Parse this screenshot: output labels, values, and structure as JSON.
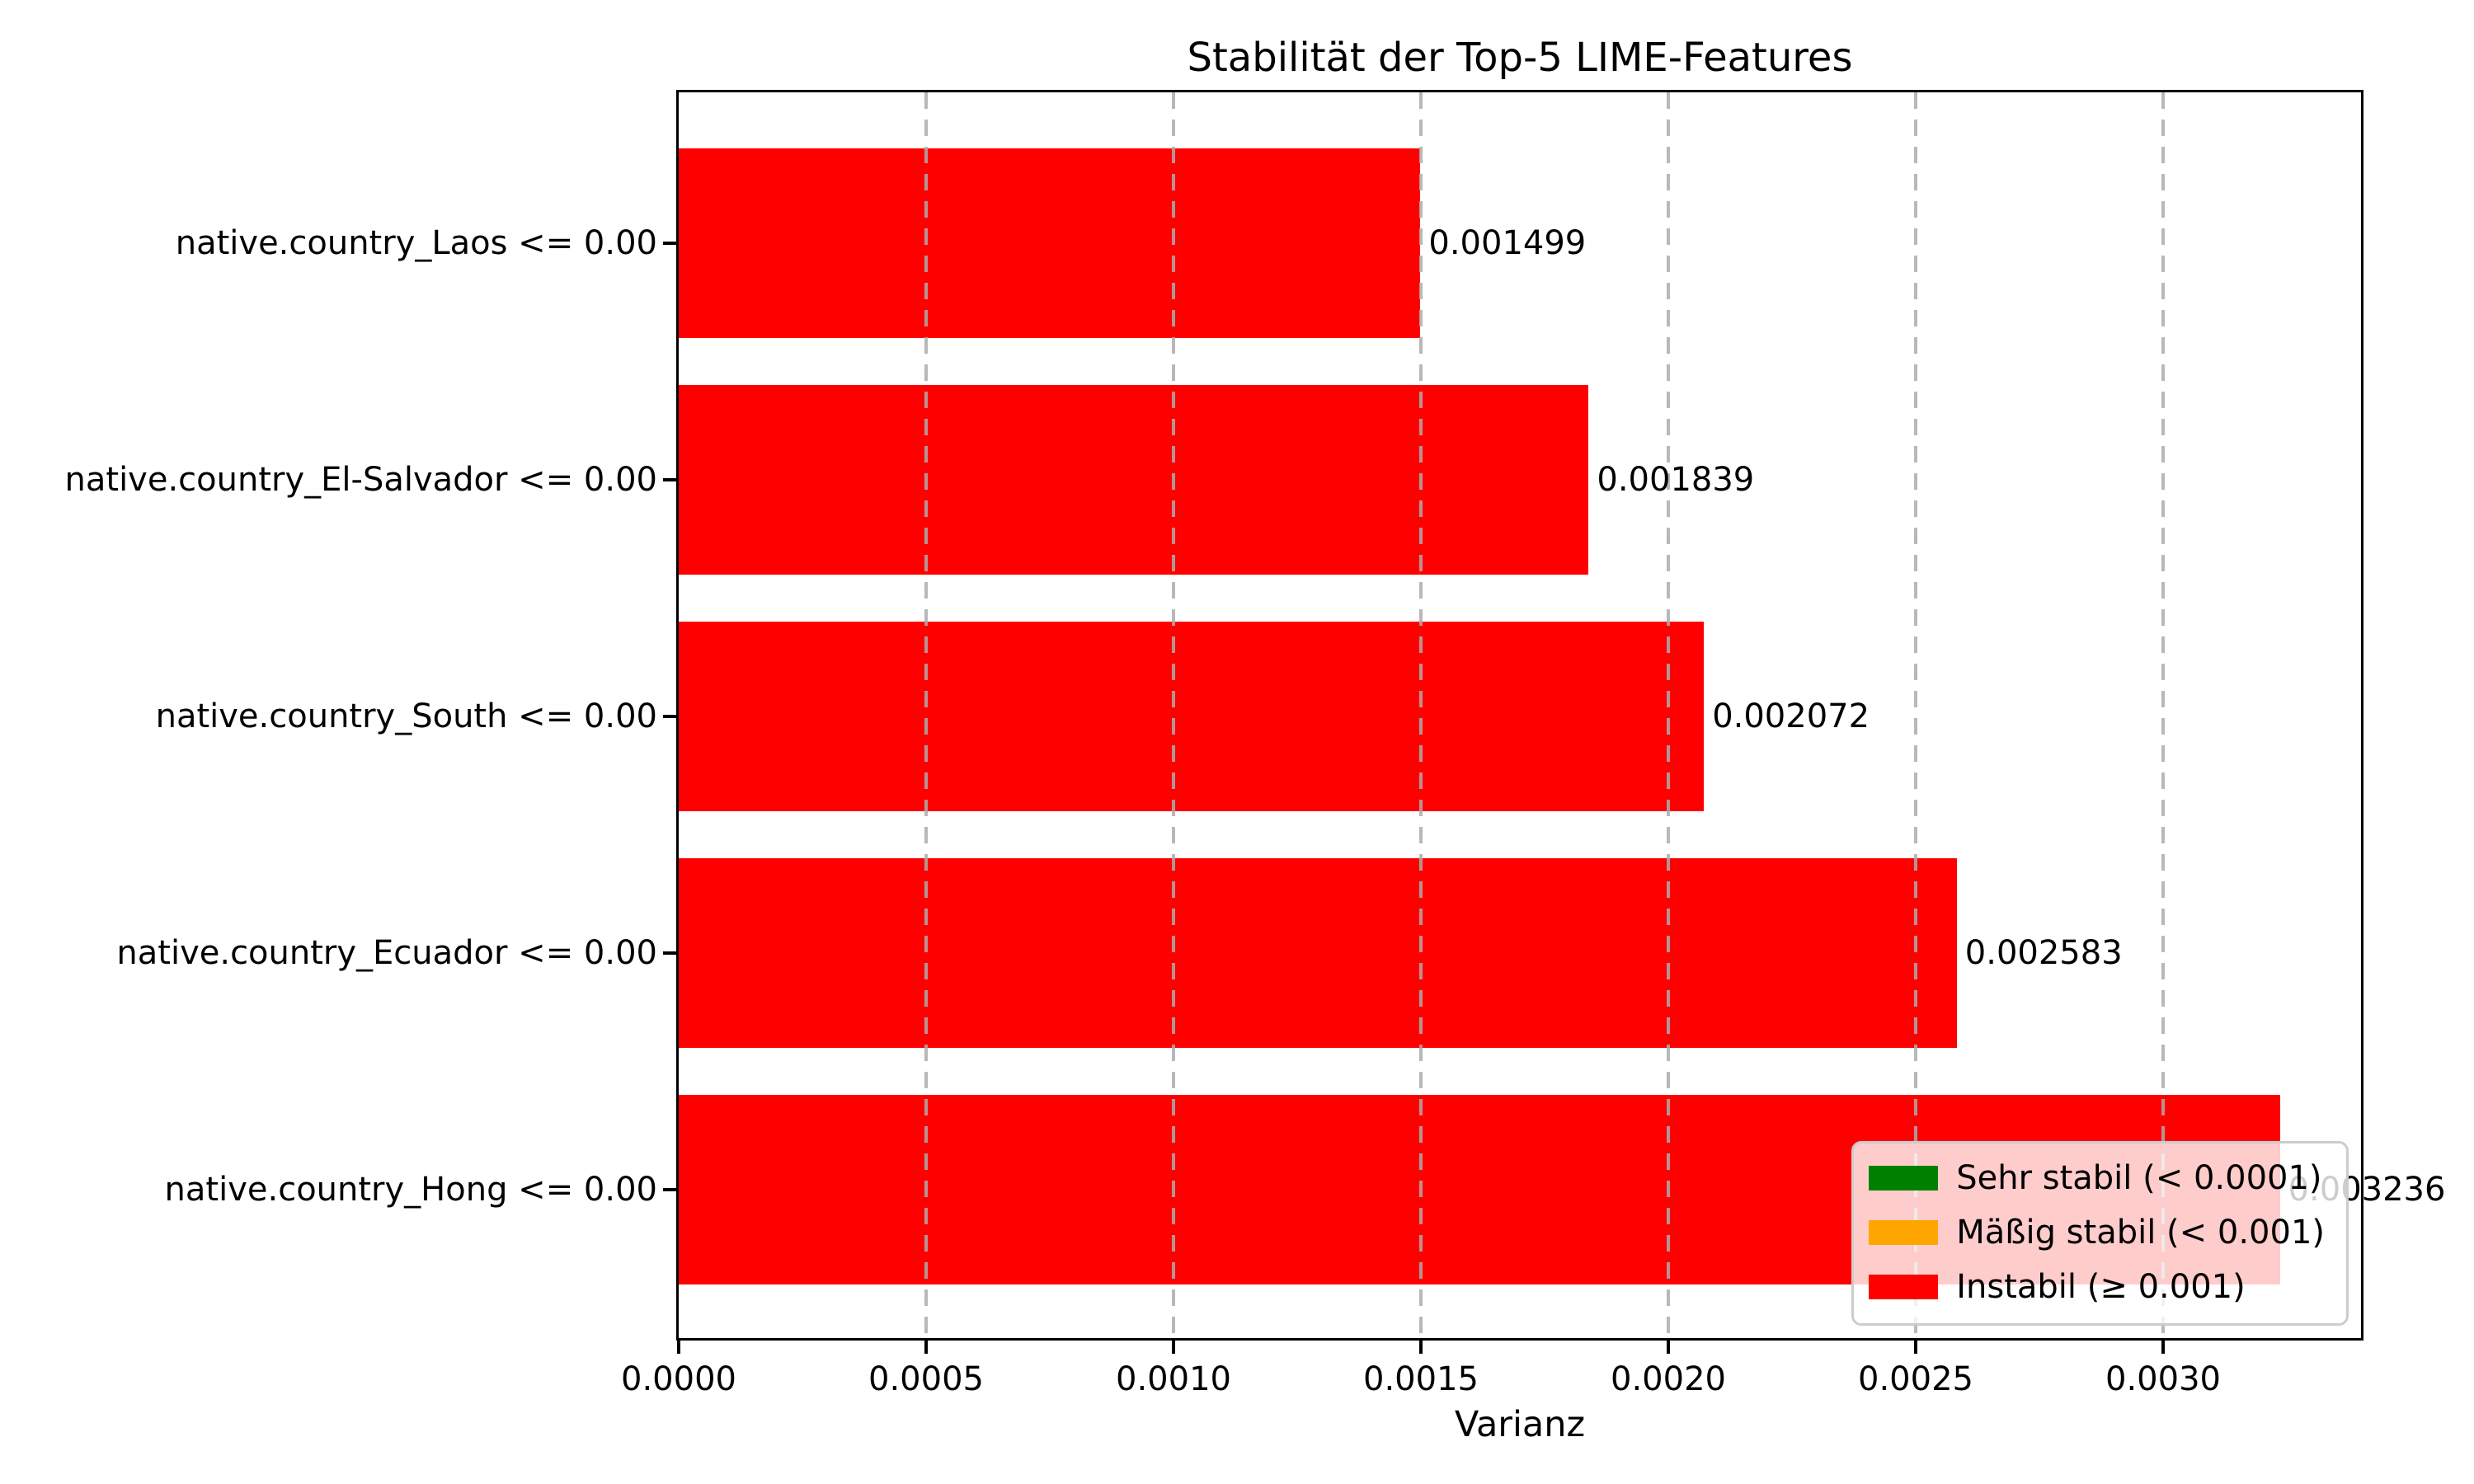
{
  "chart_data": {
    "type": "bar",
    "orientation": "horizontal",
    "title": "Stabilität der Top-5 LIME-Features",
    "xlabel": "Varianz",
    "ylabel": "",
    "xlim": [
      0,
      0.0034
    ],
    "grid": {
      "axis": "x",
      "style": "dashed",
      "color": "#b0b0b0",
      "above_bars": true
    },
    "bar_color": "#ff0000",
    "categories": [
      "native.country_Laos <= 0.00",
      "native.country_El-Salvador <= 0.00",
      "native.country_South <= 0.00",
      "native.country_Ecuador <= 0.00",
      "native.country_Hong <= 0.00"
    ],
    "values": [
      0.001499,
      0.001839,
      0.002072,
      0.002583,
      0.003236
    ],
    "value_labels": [
      "0.001499",
      "0.001839",
      "0.002072",
      "0.002583",
      "0.003236"
    ],
    "xticks": {
      "values": [
        0.0,
        0.0005,
        0.001,
        0.0015,
        0.002,
        0.0025,
        0.003
      ],
      "labels": [
        "0.0000",
        "0.0005",
        "0.0010",
        "0.0015",
        "0.0020",
        "0.0025",
        "0.0030"
      ]
    },
    "legend": {
      "position": "lower right",
      "items": [
        {
          "label": "Sehr stabil (< 0.0001)",
          "color": "#008000"
        },
        {
          "label": "Mäßig stabil (< 0.001)",
          "color": "#ffa500"
        },
        {
          "label": "Instabil (≥ 0.001)",
          "color": "#ff0000"
        }
      ]
    }
  }
}
